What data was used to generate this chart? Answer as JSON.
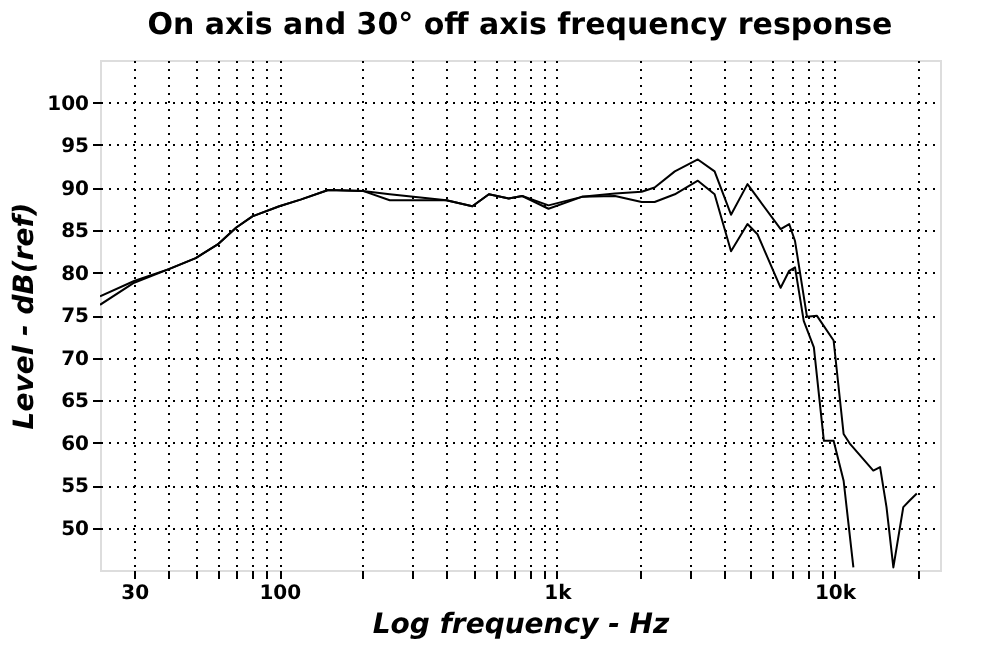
{
  "chart_data": {
    "type": "line",
    "title": "On axis and 30° off axis frequency response",
    "xlabel": "Log frequency - Hz",
    "ylabel": "Level - dB(ref)",
    "log": "x",
    "grid": true,
    "legend": false,
    "marker": "none",
    "line_style": "solid",
    "xlim": [
      22.6,
      24000
    ],
    "ylim": [
      45,
      105
    ],
    "xticks": [
      {
        "value": 30,
        "label": "30"
      },
      {
        "value": 40,
        "label": null
      },
      {
        "value": 50,
        "label": null
      },
      {
        "value": 60,
        "label": null
      },
      {
        "value": 70,
        "label": null
      },
      {
        "value": 80,
        "label": null
      },
      {
        "value": 90,
        "label": null
      },
      {
        "value": 100,
        "label": "100"
      },
      {
        "value": 200,
        "label": null
      },
      {
        "value": 300,
        "label": null
      },
      {
        "value": 400,
        "label": null
      },
      {
        "value": 500,
        "label": null
      },
      {
        "value": 600,
        "label": null
      },
      {
        "value": 700,
        "label": null
      },
      {
        "value": 800,
        "label": null
      },
      {
        "value": 900,
        "label": null
      },
      {
        "value": 1000,
        "label": "1k"
      },
      {
        "value": 2000,
        "label": null
      },
      {
        "value": 3000,
        "label": null
      },
      {
        "value": 4000,
        "label": null
      },
      {
        "value": 5000,
        "label": null
      },
      {
        "value": 6000,
        "label": null
      },
      {
        "value": 7000,
        "label": null
      },
      {
        "value": 8000,
        "label": null
      },
      {
        "value": 9000,
        "label": null
      },
      {
        "value": 10000,
        "label": "10k"
      },
      {
        "value": 20000,
        "label": null
      }
    ],
    "yticks": [
      50,
      55,
      60,
      65,
      70,
      75,
      80,
      85,
      90,
      95,
      100
    ],
    "series": [
      {
        "color": "#000000",
        "x": [
          22.6,
          30,
          40,
          50,
          60,
          70,
          80,
          100,
          120,
          150,
          200,
          250,
          400,
          496,
          569,
          671,
          750,
          933,
          1230,
          1620,
          2020,
          2250,
          2660,
          3220,
          3700,
          4240,
          4860,
          5280,
          6400,
          6870,
          7210,
          7960,
          8650,
          9930,
          10790,
          11400,
          13800,
          14600,
          15400,
          16300,
          17700,
          18700,
          19800
        ],
        "values": [
          77.2,
          79.0,
          80.4,
          81.7,
          83.3,
          85.3,
          86.6,
          87.8,
          88.6,
          89.7,
          89.6,
          89.2,
          88.5,
          87.8,
          89.2,
          88.7,
          89.0,
          87.9,
          88.9,
          89.3,
          89.5,
          90.0,
          91.9,
          93.3,
          91.9,
          86.8,
          90.4,
          88.8,
          85.1,
          85.7,
          83.7,
          74.8,
          74.9,
          72.0,
          61.0,
          59.8,
          56.7,
          57.1,
          52.4,
          45.3,
          52.4,
          53.2,
          54.0
        ]
      },
      {
        "color": "#000000",
        "x": [
          22.6,
          30,
          40,
          50,
          60,
          70,
          80,
          100,
          120,
          150,
          200,
          250,
          400,
          496,
          569,
          671,
          750,
          933,
          1230,
          1620,
          2020,
          2250,
          2660,
          3220,
          3700,
          4240,
          4860,
          5280,
          6400,
          6870,
          7210,
          7750,
          8430,
          9160,
          9930,
          10790,
          11700
        ],
        "values": [
          76.2,
          78.8,
          80.4,
          81.7,
          83.3,
          85.3,
          86.6,
          87.8,
          88.6,
          89.7,
          89.6,
          88.5,
          88.5,
          87.8,
          89.2,
          88.7,
          89.0,
          87.5,
          88.9,
          89.0,
          88.3,
          88.3,
          89.2,
          90.8,
          89.2,
          82.5,
          85.7,
          84.5,
          78.2,
          80.2,
          80.6,
          74.3,
          71.2,
          60.2,
          60.2,
          55.5,
          45.3
        ]
      }
    ]
  }
}
